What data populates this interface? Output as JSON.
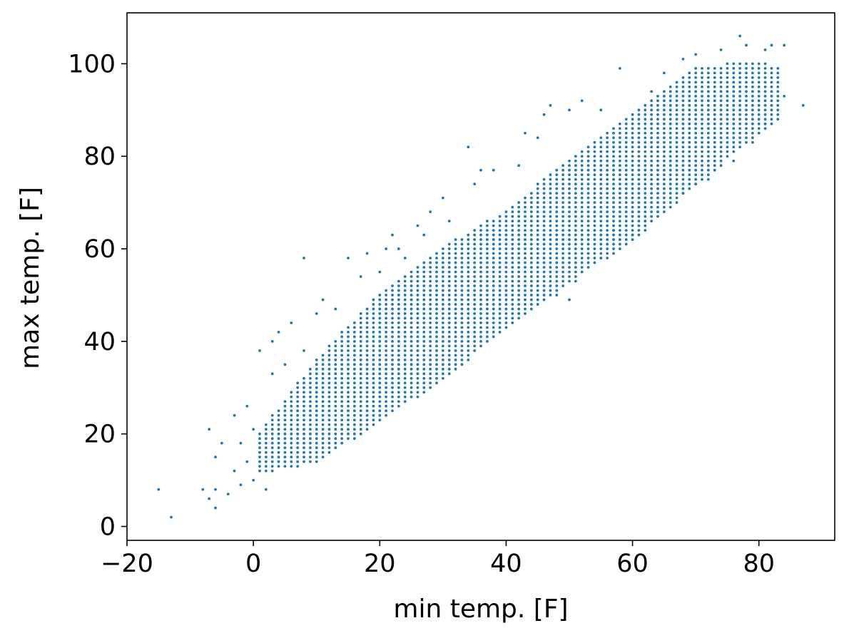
{
  "chart_data": {
    "type": "scatter",
    "title": "",
    "xlabel": "min temp. [F]",
    "ylabel": "max temp. [F]",
    "xlim": [
      -20,
      92
    ],
    "ylim": [
      -3,
      111
    ],
    "xticks": [
      -20,
      0,
      20,
      40,
      60,
      80
    ],
    "xtick_labels": [
      "−20",
      "0",
      "20",
      "40",
      "60",
      "80"
    ],
    "yticks": [
      0,
      20,
      40,
      60,
      80,
      100
    ],
    "ytick_labels": [
      "0",
      "20",
      "40",
      "60",
      "80",
      "100"
    ],
    "grid": false,
    "legend": "none",
    "marker_color": "#1f77b4",
    "series": [
      {
        "values": "points",
        "points": [
          [
            -15,
            8
          ],
          [
            -13,
            2
          ],
          [
            -8,
            8
          ],
          [
            -7,
            21
          ],
          [
            -7,
            6
          ],
          [
            -6,
            4
          ],
          [
            -6,
            8
          ],
          [
            -6,
            15
          ],
          [
            -5,
            18
          ],
          [
            -4,
            7
          ],
          [
            -3,
            12
          ],
          [
            -3,
            24
          ],
          [
            -2,
            18
          ],
          [
            -2,
            9
          ],
          [
            -1,
            26
          ],
          [
            -1,
            14
          ],
          [
            0,
            21
          ],
          [
            0,
            10
          ],
          [
            1,
            38
          ],
          [
            2,
            8
          ],
          [
            3,
            40
          ],
          [
            3,
            33
          ],
          [
            4,
            42
          ],
          [
            5,
            35
          ],
          [
            6,
            44
          ],
          [
            8,
            58
          ],
          [
            8,
            38
          ],
          [
            10,
            46
          ],
          [
            11,
            49
          ],
          [
            13,
            47
          ],
          [
            15,
            58
          ],
          [
            17,
            54
          ],
          [
            18,
            59
          ],
          [
            20,
            55
          ],
          [
            21,
            60
          ],
          [
            22,
            63
          ],
          [
            23,
            60
          ],
          [
            24,
            58
          ],
          [
            26,
            65
          ],
          [
            27,
            63
          ],
          [
            28,
            68
          ],
          [
            30,
            71
          ],
          [
            31,
            66
          ],
          [
            34,
            82
          ],
          [
            35,
            74
          ],
          [
            36,
            77
          ],
          [
            38,
            77
          ],
          [
            42,
            78
          ],
          [
            43,
            85
          ],
          [
            45,
            84
          ],
          [
            46,
            89
          ],
          [
            47,
            91
          ],
          [
            50,
            90
          ],
          [
            52,
            92
          ],
          [
            55,
            90
          ],
          [
            58,
            99
          ],
          [
            63,
            94
          ],
          [
            65,
            98
          ],
          [
            68,
            101
          ],
          [
            70,
            102
          ],
          [
            74,
            103
          ],
          [
            77,
            106
          ],
          [
            78,
            104
          ],
          [
            81,
            103
          ],
          [
            82,
            104
          ],
          [
            84,
            104
          ],
          [
            84,
            93
          ],
          [
            87,
            91
          ],
          [
            42,
            46
          ],
          [
            50,
            49
          ],
          [
            55,
            58
          ],
          [
            60,
            63
          ],
          [
            64,
            68
          ],
          [
            68,
            72
          ],
          [
            72,
            75
          ],
          [
            76,
            79
          ],
          [
            79,
            83
          ],
          [
            81,
            87
          ],
          [
            57,
            64
          ],
          [
            51,
            53
          ],
          [
            48,
            50
          ],
          [
            62,
            66
          ],
          [
            70,
            74
          ]
        ]
      }
    ],
    "dense_band": {
      "x_min": 1,
      "x_max": 83,
      "x_step": 1,
      "y_step": 1,
      "lower": [
        [
          1,
          12
        ],
        [
          10,
          14
        ],
        [
          20,
          23
        ],
        [
          30,
          32
        ],
        [
          40,
          43
        ],
        [
          50,
          53
        ],
        [
          60,
          62
        ],
        [
          70,
          74
        ],
        [
          80,
          85
        ],
        [
          83,
          88
        ]
      ],
      "upper": [
        [
          1,
          20
        ],
        [
          10,
          36
        ],
        [
          20,
          50
        ],
        [
          30,
          60
        ],
        [
          40,
          68
        ],
        [
          50,
          79
        ],
        [
          60,
          89
        ],
        [
          70,
          99
        ],
        [
          80,
          100
        ],
        [
          83,
          99
        ]
      ]
    }
  }
}
